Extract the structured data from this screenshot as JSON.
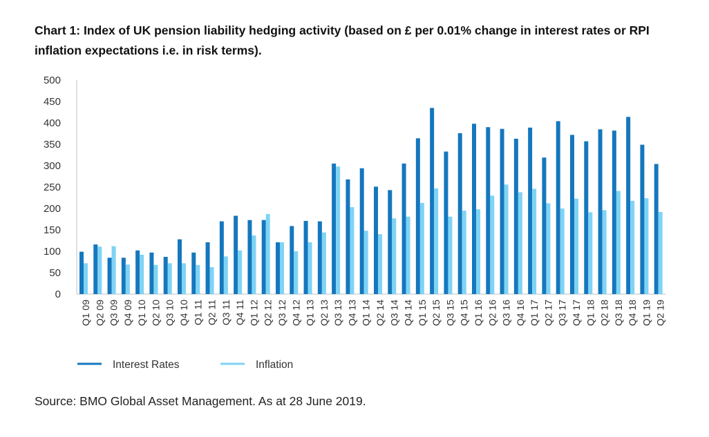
{
  "title": "Chart 1: Index of UK pension liability hedging activity (based on £ per 0.01% change in interest rates or RPI inflation expectations i.e. in risk terms).",
  "source": "Source: BMO Global Asset Management. As at 28 June 2019.",
  "colors": {
    "interest_rates": "#1577bd",
    "inflation": "#7fd3f5",
    "axis": "#bfbfbf"
  },
  "chart_data": {
    "type": "bar",
    "title": "Chart 1: Index of UK pension liability hedging activity (based on £ per 0.01% change in interest rates or RPI inflation expectations i.e. in risk terms).",
    "xlabel": "",
    "ylabel": "",
    "ylim": [
      0,
      500
    ],
    "yticks": [
      0,
      50,
      100,
      150,
      200,
      250,
      300,
      350,
      400,
      450,
      500
    ],
    "grid": false,
    "legend": "bottom-left",
    "categories": [
      "Q1 09",
      "Q2 09",
      "Q3 09",
      "Q4 09",
      "Q1 10",
      "Q2 10",
      "Q3 10",
      "Q4 10",
      "Q1 11",
      "Q2 11",
      "Q3 11",
      "Q4 11",
      "Q1 12",
      "Q2 12",
      "Q3 12",
      "Q4 12",
      "Q1 13",
      "Q2 13",
      "Q3 13",
      "Q4 13",
      "Q1 14",
      "Q2 14",
      "Q3 14",
      "Q4 14",
      "Q1 15",
      "Q2 15",
      "Q3 15",
      "Q4 15",
      "Q1 16",
      "Q2 16",
      "Q3 16",
      "Q4 16",
      "Q1 17",
      "Q2 17",
      "Q3 17",
      "Q4 17",
      "Q1 18",
      "Q2 18",
      "Q3 18",
      "Q4 18",
      "Q1 19",
      "Q2 19"
    ],
    "series": [
      {
        "name": "Interest Rates",
        "values": [
          99,
          116,
          85,
          85,
          102,
          97,
          87,
          128,
          97,
          121,
          170,
          183,
          173,
          173,
          121,
          159,
          171,
          170,
          305,
          268,
          294,
          251,
          243,
          305,
          364,
          435,
          333,
          376,
          398,
          390,
          386,
          363,
          389,
          319,
          404,
          372,
          357,
          385,
          382,
          414,
          349,
          304
        ]
      },
      {
        "name": "Inflation",
        "values": [
          72,
          111,
          112,
          69,
          92,
          68,
          72,
          72,
          68,
          63,
          88,
          102,
          137,
          187,
          121,
          100,
          121,
          144,
          298,
          203,
          148,
          140,
          177,
          181,
          213,
          247,
          181,
          195,
          198,
          230,
          256,
          238,
          246,
          212,
          200,
          223,
          191,
          196,
          241,
          218,
          224,
          192
        ]
      }
    ]
  }
}
